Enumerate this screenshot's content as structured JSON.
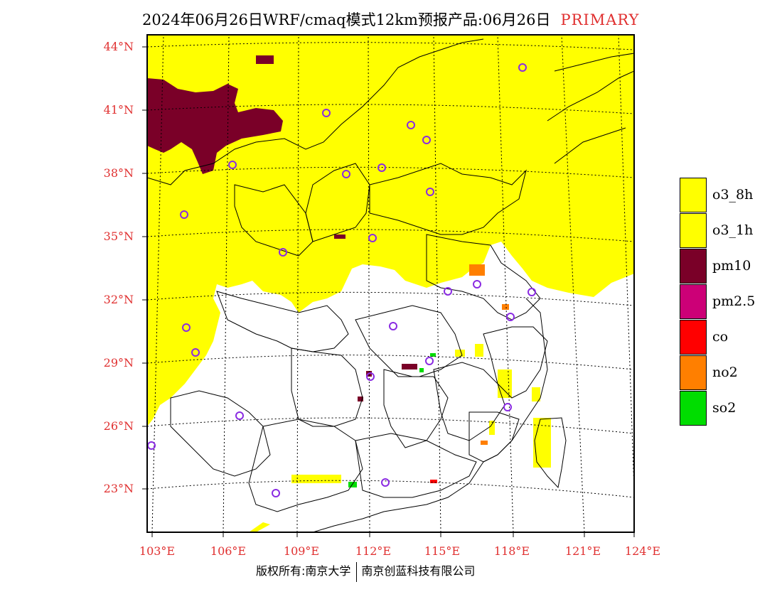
{
  "title": {
    "main": "2024年06月26日WRF/cmaq模式12km预报产品:06月26日",
    "tag": "PRIMARY"
  },
  "lat_labels": [
    "44°N",
    "41°N",
    "38°N",
    "35°N",
    "32°N",
    "29°N",
    "26°N",
    "23°N"
  ],
  "lon_labels": [
    "103°E",
    "106°E",
    "109°E",
    "112°E",
    "115°E",
    "118°E",
    "121°E",
    "124°E"
  ],
  "legend": [
    {
      "label": "o3_8h",
      "color": "#ffff00"
    },
    {
      "label": "o3_1h",
      "color": "#ffff00"
    },
    {
      "label": "pm10",
      "color": "#7a0028"
    },
    {
      "label": "pm2.5",
      "color": "#cc0077"
    },
    {
      "label": "co",
      "color": "#ff0000"
    },
    {
      "label": "no2",
      "color": "#ff7f00"
    },
    {
      "label": "so2",
      "color": "#00dd00"
    }
  ],
  "footer": {
    "left": "版权所有:南京大学",
    "right": "南京创蓝科技有限公司"
  },
  "colors": {
    "o3": "#ffff00",
    "pm10": "#7a0028",
    "station": "#8a2be2",
    "axis_label": "#e03030"
  }
}
